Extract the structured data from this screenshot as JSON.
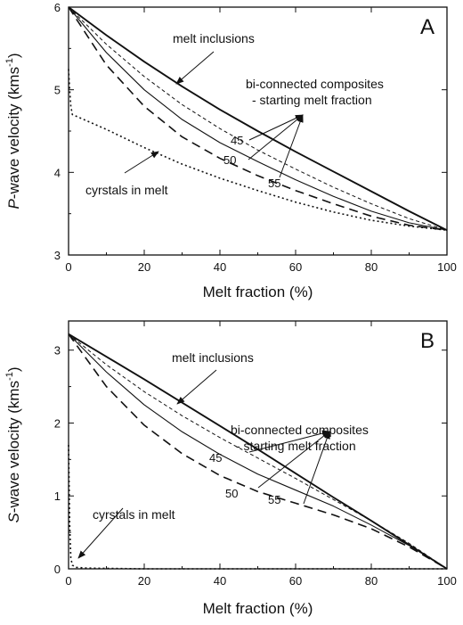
{
  "chart_data": [
    {
      "type": "line",
      "panel_label": "A",
      "xlabel": "Melt fraction (%)",
      "ylabel": "P-wave velocity (kms-1)",
      "ylabel_parts": {
        "italic": "P",
        "rest": "-wave velocity (kms",
        "sup": "-1",
        "close": ")"
      },
      "xlim": [
        0,
        100
      ],
      "ylim": [
        3,
        6
      ],
      "xticks": [
        0,
        20,
        40,
        60,
        80,
        100
      ],
      "yticks": [
        3,
        4,
        5,
        6
      ],
      "series": [
        {
          "key": "melt_inclusions",
          "style": "solid-thick",
          "x": [
            0,
            10,
            20,
            30,
            40,
            50,
            60,
            70,
            80,
            90,
            100
          ],
          "y": [
            6.0,
            5.66,
            5.34,
            5.04,
            4.76,
            4.5,
            4.25,
            4.01,
            3.77,
            3.53,
            3.3
          ]
        },
        {
          "key": "s45",
          "label": "45",
          "style": "short-dash",
          "x": [
            0,
            10,
            20,
            30,
            40,
            50,
            60,
            70,
            80,
            90,
            100
          ],
          "y": [
            6.0,
            5.55,
            5.16,
            4.82,
            4.53,
            4.27,
            4.04,
            3.82,
            3.62,
            3.44,
            3.3
          ]
        },
        {
          "key": "s50",
          "label": "50",
          "style": "solid-thin",
          "x": [
            0,
            10,
            20,
            30,
            40,
            50,
            60,
            70,
            80,
            90,
            100
          ],
          "y": [
            6.0,
            5.45,
            5.0,
            4.64,
            4.36,
            4.13,
            3.91,
            3.71,
            3.53,
            3.39,
            3.3
          ]
        },
        {
          "key": "s55",
          "label": "55",
          "style": "long-dash",
          "x": [
            0,
            10,
            20,
            30,
            40,
            50,
            60,
            70,
            80,
            90,
            100
          ],
          "y": [
            6.0,
            5.3,
            4.8,
            4.43,
            4.17,
            3.96,
            3.78,
            3.62,
            3.47,
            3.36,
            3.3
          ]
        },
        {
          "key": "crystals_in_melt",
          "style": "dotted",
          "x": [
            0,
            0.3,
            0.6,
            1,
            10,
            20,
            30,
            40,
            50,
            60,
            70,
            80,
            90,
            100
          ],
          "y": [
            5.25,
            5.0,
            4.8,
            4.7,
            4.52,
            4.3,
            4.1,
            3.93,
            3.78,
            3.64,
            3.52,
            3.42,
            3.35,
            3.3
          ]
        }
      ],
      "annotations": {
        "melt_inclusions": "melt inclusions",
        "bi_connected_line1": "bi-connected composites",
        "bi_connected_line2": "- starting melt fraction",
        "crystals": "cyrstals in melt"
      }
    },
    {
      "type": "line",
      "panel_label": "B",
      "xlabel": "Melt fraction (%)",
      "ylabel": "S-wave velocity (kms-1)",
      "ylabel_parts": {
        "italic": "S",
        "rest": "-wave velocity (kms",
        "sup": "-1",
        "close": ")"
      },
      "xlim": [
        0,
        100
      ],
      "ylim": [
        0,
        3.4
      ],
      "xticks": [
        0,
        20,
        40,
        60,
        80,
        100
      ],
      "yticks": [
        0,
        1,
        2,
        3
      ],
      "series": [
        {
          "key": "melt_inclusions",
          "style": "solid-thick",
          "x": [
            0,
            10,
            20,
            30,
            40,
            50,
            60,
            70,
            80,
            90,
            100
          ],
          "y": [
            3.22,
            2.91,
            2.6,
            2.28,
            1.96,
            1.64,
            1.31,
            0.98,
            0.66,
            0.33,
            0.0
          ]
        },
        {
          "key": "s45",
          "label": "45",
          "style": "short-dash",
          "x": [
            0,
            10,
            20,
            30,
            40,
            50,
            60,
            70,
            80,
            90,
            100
          ],
          "y": [
            3.22,
            2.8,
            2.43,
            2.1,
            1.8,
            1.52,
            1.24,
            0.95,
            0.66,
            0.35,
            0.0
          ]
        },
        {
          "key": "s50",
          "label": "50",
          "style": "solid-thin",
          "x": [
            0,
            10,
            20,
            30,
            40,
            50,
            60,
            70,
            80,
            90,
            100
          ],
          "y": [
            3.22,
            2.7,
            2.25,
            1.88,
            1.57,
            1.3,
            1.08,
            0.86,
            0.6,
            0.32,
            0.0
          ]
        },
        {
          "key": "s55",
          "label": "55",
          "style": "long-dash",
          "x": [
            0,
            10,
            20,
            30,
            40,
            50,
            60,
            70,
            80,
            90,
            100
          ],
          "y": [
            3.22,
            2.5,
            1.97,
            1.58,
            1.28,
            1.06,
            0.9,
            0.74,
            0.55,
            0.3,
            0.0
          ]
        },
        {
          "key": "crystals_in_melt",
          "style": "dotted",
          "x": [
            0,
            0.3,
            0.6,
            1,
            2,
            5,
            20,
            40,
            60,
            80,
            100
          ],
          "y": [
            1.7,
            0.6,
            0.15,
            0.05,
            0.02,
            0.01,
            0.0,
            0.0,
            0.0,
            0.0,
            0.0
          ]
        }
      ],
      "annotations": {
        "melt_inclusions": "melt inclusions",
        "bi_connected_line1": "bi-connected composites",
        "bi_connected_line2": "- starting melt fraction",
        "crystals": "cyrstals in melt"
      }
    }
  ]
}
